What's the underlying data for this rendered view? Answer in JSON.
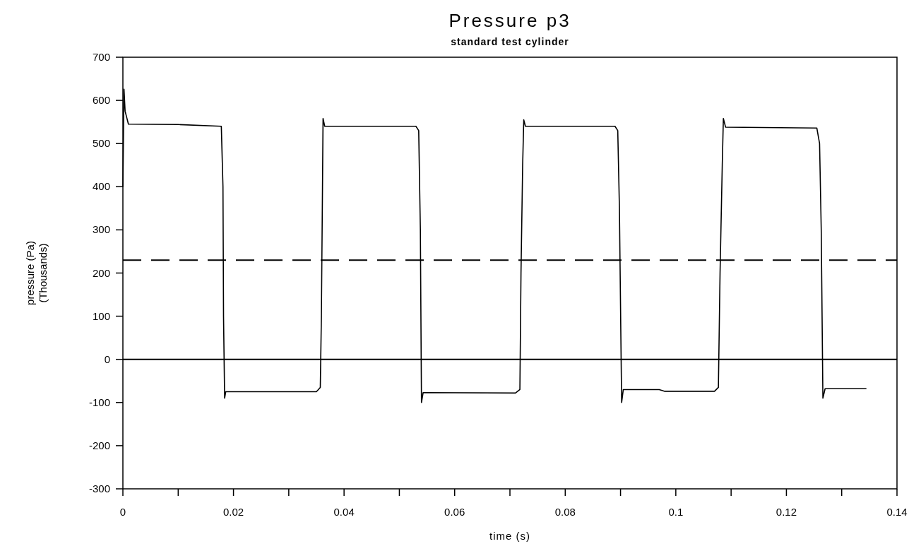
{
  "chart_data": {
    "type": "line",
    "title": "Pressure p3",
    "subtitle": "standard test cylinder",
    "xlabel": "time (s)",
    "ylabel": "pressure (Pa)\n(Thousands)",
    "xlim": [
      0,
      0.14
    ],
    "ylim": [
      -300,
      700
    ],
    "xticks": [
      0,
      {
        "value": 0.01,
        "label": null
      },
      0.02,
      {
        "value": 0.03,
        "label": null
      },
      0.04,
      {
        "value": 0.05,
        "label": null
      },
      0.06,
      {
        "value": 0.07,
        "label": null
      },
      0.08,
      {
        "value": 0.09,
        "label": null
      },
      0.1,
      {
        "value": 0.11,
        "label": null
      },
      0.12,
      {
        "value": 0.13,
        "label": null
      },
      0.14
    ],
    "yticks": [
      -300,
      -200,
      -100,
      0,
      100,
      200,
      300,
      400,
      500,
      600,
      700
    ],
    "grid": false,
    "marker": "none",
    "line_style": "solid",
    "ref_lines": [
      {
        "axis": "y",
        "value": 0,
        "label": null,
        "color": "#000000",
        "line_style": "solid"
      },
      {
        "axis": "y",
        "value": 230,
        "label": null,
        "color": "#000000",
        "line_style": "dashed"
      }
    ],
    "series": [
      {
        "color": "#000000",
        "x": [
          0,
          0.0002,
          0.0004,
          0.001,
          0.01,
          0.0178,
          0.0181,
          0.0182,
          0.0184,
          0.0186,
          0.035,
          0.0357,
          0.0359,
          0.0361,
          0.0362,
          0.0365,
          0.053,
          0.0535,
          0.0538,
          0.054,
          0.0543,
          0.071,
          0.0718,
          0.072,
          0.0723,
          0.0725,
          0.0728,
          0.089,
          0.0895,
          0.0898,
          0.0902,
          0.0905,
          0.097,
          0.098,
          0.107,
          0.1077,
          0.108,
          0.1084,
          0.1086,
          0.109,
          0.1255,
          0.126,
          0.1263,
          0.1266,
          0.127,
          0.1344
        ],
        "values": [
          400,
          626,
          575,
          545,
          544,
          540,
          400,
          100,
          -90,
          -75,
          -75,
          -65,
          100,
          400,
          558,
          540,
          540,
          530,
          300,
          -100,
          -77,
          -78,
          -70,
          200,
          450,
          555,
          540,
          540,
          530,
          350,
          -100,
          -70,
          -70,
          -74,
          -74,
          -65,
          200,
          450,
          558,
          538,
          536,
          500,
          300,
          -90,
          -68,
          -68
        ]
      }
    ]
  }
}
